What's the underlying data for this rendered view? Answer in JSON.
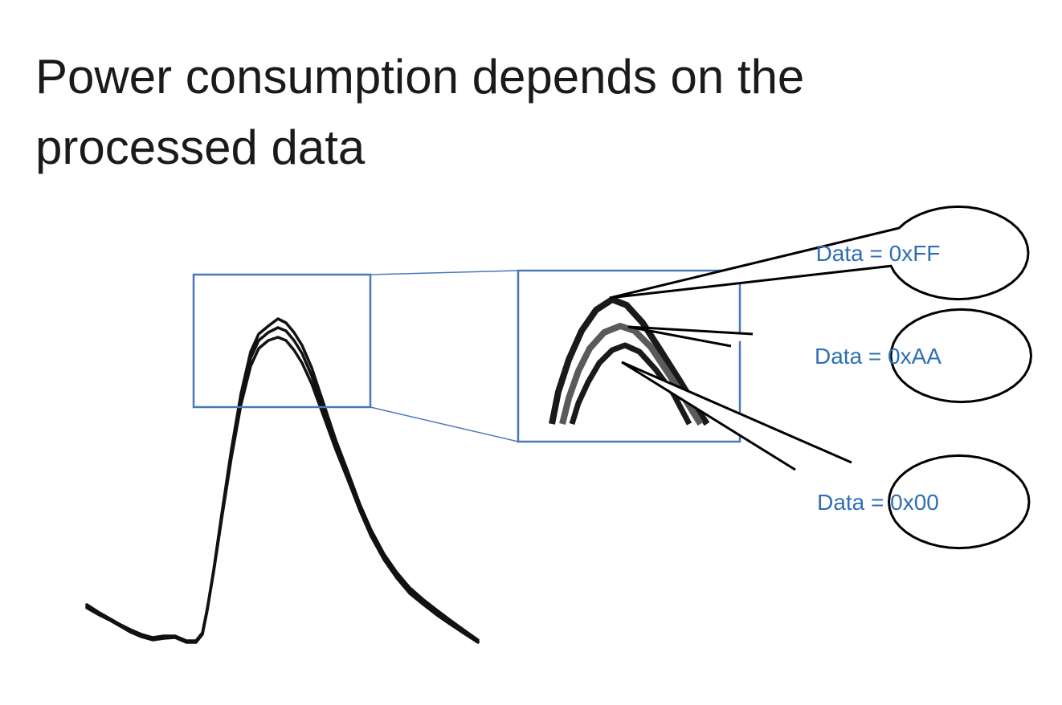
{
  "slide": {
    "title_line1": "Power consumption depends on the",
    "title_line2": "processed data"
  },
  "callouts": {
    "ff": "Data = 0xFF",
    "aa": "Data = 0xAA",
    "zero": "Data = 0x00"
  },
  "colors": {
    "title_text": "#1a1a1a",
    "callout_text": "#2f6fb3",
    "zoom_frame": "#4a78b8",
    "trace": "#111111"
  }
}
